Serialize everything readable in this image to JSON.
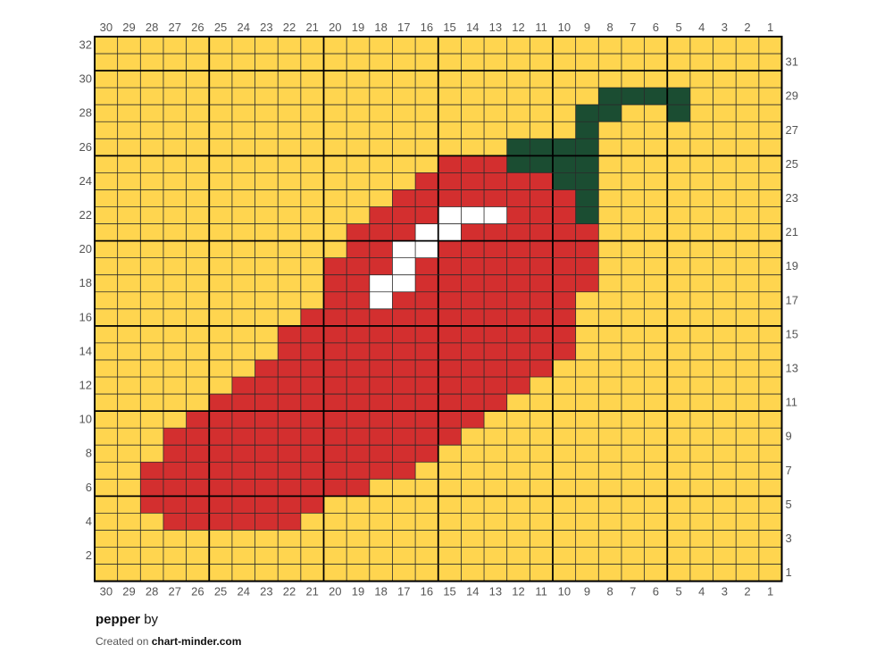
{
  "chart": {
    "title": "pepper",
    "by_label": "by",
    "created_on_label": "Created on",
    "site": "chart-minder.com",
    "columns": 30,
    "rows": 32,
    "colors": {
      "Y": "#ffd54f",
      "R": "#d32f2f",
      "G": "#1b4d32",
      "W": "#ffffff"
    },
    "grid_rows_top_to_bottom": [
      "YYYYYYYYYYYYYYYYYYYYYYYYYYYYYY",
      "YYYYYYYYYYYYYYYYYYYYYYYYYYYYYY",
      "YYYYYYYYYYYYYYYYYYYYYYYYYYYYYY",
      "YYYYYYYYYYYYYYYYYYYYYYGGGGYYYY",
      "YYYYYYYYYYYYYYYYYYYYYGGYYGYYYY",
      "YYYYYYYYYYYYYYYYYYYYYGYYYYYYYY",
      "YYYYYYYYYYYYYYYYYYGGGGYYYYYYYY",
      "YYYYYYYYYYYYYYYRRRGGGGYYYYYYYY",
      "YYYYYYYYYYYYYYRRRRRRGGYYYYYYYY",
      "YYYYYYYYYYYYYRRRRRRRRGYYYYYYYY",
      "YYYYYYYYYYYYRRRWWWRRRGYYYYYYYY",
      "YYYYYYYYYYYRRRWWRRRRRRYYYYYYYY",
      "YYYYYYYYYYYRRWWRRRRRRRYYYYYYYY",
      "YYYYYYYYYYRRRWRRRRRRRRYYYYYYYY",
      "YYYYYYYYYYRRWWRRRRRRRRYYYYYYYY",
      "YYYYYYYYYYRRWRRRRRRRRYYYYYYYYY",
      "YYYYYYYYYRRRRRRRRRRRRYYYYYYYYY",
      "YYYYYYYYRRRRRRRRRRRRRYYYYYYYYY",
      "YYYYYYYYRRRRRRRRRRRRRYYYYYYYYY",
      "YYYYYYYRRRRRRRRRRRRRYYYYYYYYYY",
      "YYYYYYRRRRRRRRRRRRRYYYYYYYYYYY",
      "YYYYYRRRRRRRRRRRRRYYYYYYYYYYYY",
      "YYYYRRRRRRRRRRRRRYYYYYYYYYYYYY",
      "YYYRRRRRRRRRRRRRYYYYYYYYYYYYYY",
      "YYYRRRRRRRRRRRRYYYYYYYYYYYYYYY",
      "YYRRRRRRRRRRRRYYYYYYYYYYYYYYYY",
      "YYRRRRRRRRRRYYYYYYYYYYYYYYYYYY",
      "YYRRRRRRRRYYYYYYYYYYYYYYYYYYYY",
      "YYYRRRRRRYYYYYYYYYYYYYYYYYYYYY",
      "YYYYYYYYYYYYYYYYYYYYYYYYYYYYYY",
      "YYYYYYYYYYYYYYYYYYYYYYYYYYYYYY",
      "YYYYYYYYYYYYYYYYYYYYYYYYYYYYYY"
    ],
    "column_labels": [
      "30",
      "29",
      "28",
      "27",
      "26",
      "25",
      "24",
      "23",
      "22",
      "21",
      "20",
      "19",
      "18",
      "17",
      "16",
      "15",
      "14",
      "13",
      "12",
      "11",
      "10",
      "9",
      "8",
      "7",
      "6",
      "5",
      "4",
      "3",
      "2",
      "1"
    ],
    "left_row_labels": [
      "32",
      "30",
      "28",
      "26",
      "24",
      "22",
      "20",
      "18",
      "16",
      "14",
      "12",
      "10",
      "8",
      "6",
      "4",
      "2"
    ],
    "right_row_labels": [
      "31",
      "29",
      "27",
      "25",
      "23",
      "21",
      "19",
      "17",
      "15",
      "13",
      "11",
      "9",
      "7",
      "5",
      "3",
      "1"
    ]
  }
}
